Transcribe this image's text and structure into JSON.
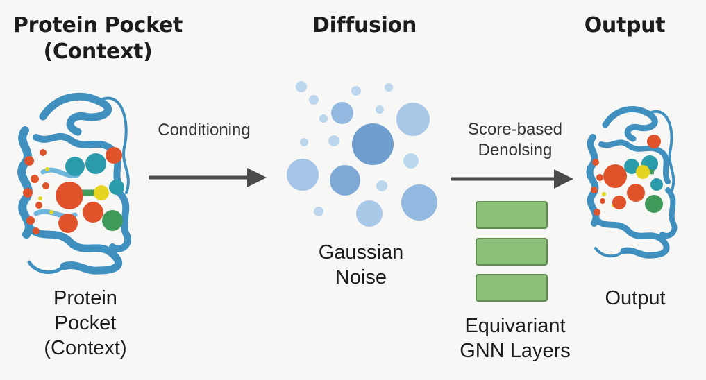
{
  "headings": {
    "context": [
      "Protein Pocket",
      "(Context)"
    ],
    "diffusion": "Diffusion",
    "output": "Output"
  },
  "arrows": {
    "conditioning": "Conditioning",
    "denoising": [
      "Score-based",
      "Denolsing"
    ]
  },
  "captions": {
    "context": [
      "Protein",
      "Pocket",
      "(Context)"
    ],
    "noise": [
      "Gaussian",
      "Noise"
    ],
    "gnn": [
      "Equivariant",
      "GNN Layers"
    ],
    "output": "Output"
  },
  "colors": {
    "ribbon": "#3f8fbf",
    "ribbon_light": "#6fb6dd",
    "atom_red": "#e0532a",
    "atom_teal": "#2a9bab",
    "atom_green": "#3f9a5a",
    "atom_yellow": "#e6d520",
    "noise_blue": "#7ea9d6",
    "arrow": "#4a4a4a",
    "gnn_fill": "#8dc07a"
  }
}
